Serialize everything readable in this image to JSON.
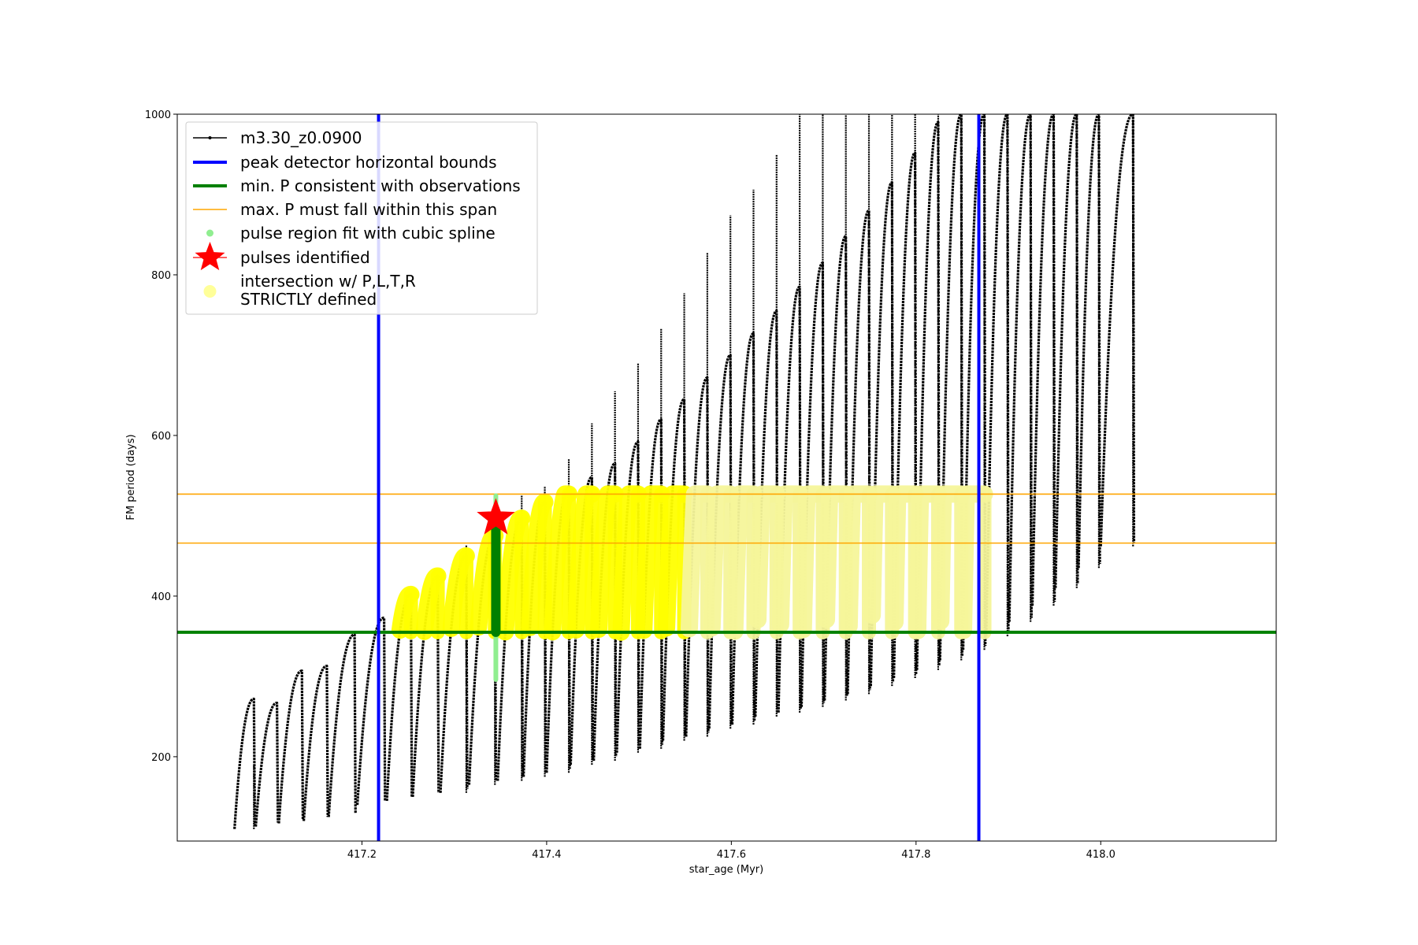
{
  "chart_data": {
    "type": "line",
    "xlabel": "star_age (Myr)",
    "ylabel": "FM period (days)",
    "xlim": [
      417.0,
      418.19
    ],
    "ylim": [
      95,
      1000
    ],
    "xticks": [
      "417.2",
      "417.4",
      "417.6",
      "417.8",
      "418.0"
    ],
    "yticks": [
      "200",
      "400",
      "600",
      "800",
      "1000"
    ],
    "grid": false,
    "legend_placement": "upper-left",
    "legend": [
      {
        "key": "model",
        "label": "m3.30_z0.0900",
        "color": "#000000",
        "style": "line-marker"
      },
      {
        "key": "bounds",
        "label": "peak detector horizontal bounds",
        "color": "#0000ff",
        "style": "line-thick"
      },
      {
        "key": "minp",
        "label": "min. P consistent with observations",
        "color": "#008000",
        "style": "line-thick"
      },
      {
        "key": "maxp",
        "label": "max. P must fall within this span",
        "color": "#ffa500",
        "style": "line-thin"
      },
      {
        "key": "spline",
        "label": "pulse region fit with cubic spline",
        "color": "#90ee90",
        "style": "dot"
      },
      {
        "key": "pulse",
        "label": "pulses identified",
        "color": "#ff0000",
        "style": "star"
      },
      {
        "key": "intersect",
        "label": "intersection w/ P,L,T,R\nSTRICTLY defined",
        "color": "#ffff99",
        "style": "big-dot"
      }
    ],
    "vertical_bounds_x": [
      417.218,
      417.868
    ],
    "min_period": 355,
    "max_period_span": [
      466,
      527
    ],
    "pulse_identified": {
      "x": 417.345,
      "y": 497
    },
    "spline_region": {
      "x": 417.345,
      "y": [
        296,
        525
      ]
    },
    "colors": {
      "model": "#000000",
      "bounds": "#0000ff",
      "min_period": "#008000",
      "max_span": "#ffa500",
      "spline": "#90ee90",
      "pulse": "#ff0000",
      "intersection": "#ffff00",
      "intersection_faded": "#f5f59a"
    },
    "pulse_cycles": [
      {
        "start": 417.062,
        "end": 417.083,
        "top": 272,
        "bottom": 110,
        "spike": 190
      },
      {
        "start": 417.085,
        "end": 417.108,
        "top": 267,
        "bottom": 113
      },
      {
        "start": 417.11,
        "end": 417.135,
        "top": 307,
        "bottom": 117
      },
      {
        "start": 417.137,
        "end": 417.162,
        "top": 313,
        "bottom": 120
      },
      {
        "start": 417.164,
        "end": 417.192,
        "top": 352,
        "bottom": 125
      },
      {
        "start": 417.195,
        "end": 417.224,
        "top": 373,
        "bottom": 140
      },
      {
        "start": 417.227,
        "end": 417.253,
        "top": 402,
        "bottom": 145
      },
      {
        "start": 417.255,
        "end": 417.282,
        "top": 425,
        "bottom": 150
      },
      {
        "start": 417.285,
        "end": 417.313,
        "top": 450,
        "bottom": 155,
        "spike": 463
      },
      {
        "start": 417.316,
        "end": 417.344,
        "top": 475,
        "bottom": 165,
        "spike": 500
      },
      {
        "start": 417.347,
        "end": 417.373,
        "top": 497,
        "bottom": 170,
        "spike": 525
      },
      {
        "start": 417.375,
        "end": 417.398,
        "top": 517,
        "bottom": 175,
        "spike": 537
      },
      {
        "start": 417.4,
        "end": 417.424,
        "top": 535,
        "bottom": 180,
        "spike": 571
      },
      {
        "start": 417.426,
        "end": 417.449,
        "top": 548,
        "bottom": 190,
        "spike": 615
      },
      {
        "start": 417.451,
        "end": 417.474,
        "top": 565,
        "bottom": 195,
        "spike": 655
      },
      {
        "start": 417.476,
        "end": 417.499,
        "top": 592,
        "bottom": 205,
        "spike": 690
      },
      {
        "start": 417.501,
        "end": 417.524,
        "top": 620,
        "bottom": 210,
        "spike": 733
      },
      {
        "start": 417.526,
        "end": 417.549,
        "top": 645,
        "bottom": 220,
        "spike": 777
      },
      {
        "start": 417.551,
        "end": 417.574,
        "top": 672,
        "bottom": 225,
        "spike": 828
      },
      {
        "start": 417.576,
        "end": 417.599,
        "top": 700,
        "bottom": 235,
        "spike": 874
      },
      {
        "start": 417.601,
        "end": 417.624,
        "top": 727,
        "bottom": 240,
        "spike": 906
      },
      {
        "start": 417.626,
        "end": 417.649,
        "top": 755,
        "bottom": 250,
        "spike": 950
      },
      {
        "start": 417.651,
        "end": 417.674,
        "top": 785,
        "bottom": 255,
        "spike": 1000
      },
      {
        "start": 417.676,
        "end": 417.699,
        "top": 815,
        "bottom": 262,
        "spike": 1000
      },
      {
        "start": 417.701,
        "end": 417.724,
        "top": 848,
        "bottom": 270,
        "spike": 1000
      },
      {
        "start": 417.726,
        "end": 417.749,
        "top": 880,
        "bottom": 278,
        "spike": 1000
      },
      {
        "start": 417.751,
        "end": 417.774,
        "top": 915,
        "bottom": 288,
        "spike": 1000
      },
      {
        "start": 417.776,
        "end": 417.799,
        "top": 952,
        "bottom": 298,
        "spike": 1000
      },
      {
        "start": 417.801,
        "end": 417.824,
        "top": 990,
        "bottom": 308,
        "spike": 1000
      },
      {
        "start": 417.826,
        "end": 417.849,
        "top": 1000,
        "bottom": 320,
        "spike": 1000
      },
      {
        "start": 417.851,
        "end": 417.874,
        "top": 1000,
        "bottom": 333,
        "spike": 1000
      },
      {
        "start": 417.876,
        "end": 417.899,
        "top": 1000,
        "bottom": 350,
        "spike": 1000
      },
      {
        "start": 417.901,
        "end": 417.924,
        "top": 1000,
        "bottom": 368,
        "spike": 1000
      },
      {
        "start": 417.926,
        "end": 417.949,
        "top": 1000,
        "bottom": 388,
        "spike": 1000
      },
      {
        "start": 417.951,
        "end": 417.974,
        "top": 1000,
        "bottom": 410,
        "spike": 1000
      },
      {
        "start": 417.976,
        "end": 417.998,
        "top": 1000,
        "bottom": 435,
        "spike": 1000
      },
      {
        "start": 418.0,
        "end": 418.035,
        "top": 1000,
        "bottom": 462,
        "spike": 1000
      }
    ]
  }
}
